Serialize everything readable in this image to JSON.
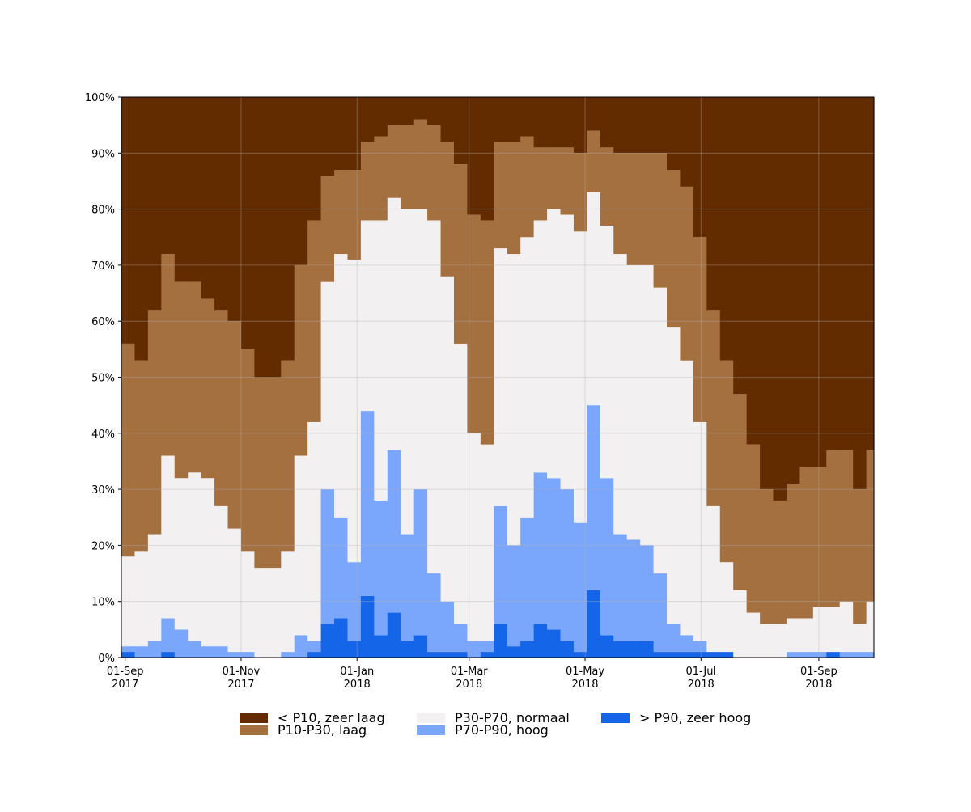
{
  "chart_data": {
    "type": "stacked_area",
    "x": [
      "2017-08-30",
      "2017-09-06",
      "2017-09-13",
      "2017-09-20",
      "2017-09-27",
      "2017-10-04",
      "2017-10-11",
      "2017-10-18",
      "2017-10-25",
      "2017-11-01",
      "2017-11-08",
      "2017-11-15",
      "2017-11-22",
      "2017-11-29",
      "2017-12-06",
      "2017-12-13",
      "2017-12-20",
      "2017-12-27",
      "2018-01-03",
      "2018-01-10",
      "2018-01-17",
      "2018-01-24",
      "2018-01-31",
      "2018-02-07",
      "2018-02-14",
      "2018-02-21",
      "2018-02-28",
      "2018-03-07",
      "2018-03-14",
      "2018-03-21",
      "2018-03-28",
      "2018-04-04",
      "2018-04-11",
      "2018-04-18",
      "2018-04-25",
      "2018-05-02",
      "2018-05-09",
      "2018-05-16",
      "2018-05-23",
      "2018-05-30",
      "2018-06-06",
      "2018-06-13",
      "2018-06-20",
      "2018-06-27",
      "2018-07-04",
      "2018-07-11",
      "2018-07-18",
      "2018-07-25",
      "2018-08-01",
      "2018-08-08",
      "2018-08-15",
      "2018-08-22",
      "2018-08-29",
      "2018-09-05",
      "2018-09-12",
      "2018-09-19",
      "2018-09-26"
    ],
    "series": [
      {
        "name": "< P10, zeer laag",
        "color": "#632c00",
        "values": [
          44,
          47,
          38,
          28,
          33,
          33,
          36,
          38,
          40,
          45,
          50,
          50,
          47,
          30,
          22,
          14,
          13,
          13,
          8,
          7,
          5,
          5,
          4,
          5,
          8,
          12,
          21,
          22,
          8,
          8,
          7,
          9,
          9,
          9,
          10,
          6,
          9,
          10,
          10,
          10,
          10,
          13,
          16,
          25,
          38,
          47,
          53,
          62,
          70,
          72,
          69,
          66,
          66,
          63,
          63,
          70,
          63
        ]
      },
      {
        "name": "P10-P30, laag",
        "color": "#a5703f",
        "values": [
          38,
          34,
          40,
          36,
          35,
          34,
          32,
          35,
          37,
          36,
          34,
          34,
          34,
          34,
          36,
          19,
          15,
          16,
          14,
          15,
          13,
          15,
          16,
          17,
          24,
          32,
          39,
          40,
          19,
          20,
          18,
          13,
          11,
          12,
          14,
          11,
          14,
          18,
          20,
          20,
          24,
          28,
          31,
          33,
          35,
          36,
          35,
          30,
          24,
          22,
          24,
          27,
          25,
          28,
          27,
          24,
          27
        ]
      },
      {
        "name": "P30-P70, normaal",
        "color": "#f2f0f0",
        "values": [
          16,
          17,
          19,
          29,
          27,
          30,
          30,
          25,
          22,
          18,
          16,
          16,
          18,
          32,
          39,
          37,
          47,
          54,
          34,
          50,
          45,
          58,
          50,
          63,
          58,
          50,
          37,
          35,
          46,
          52,
          50,
          45,
          48,
          49,
          52,
          38,
          45,
          50,
          49,
          50,
          51,
          53,
          49,
          39,
          26,
          16,
          12,
          8,
          6,
          6,
          6,
          6,
          8,
          8,
          9,
          5,
          9
        ]
      },
      {
        "name": "P70-P90, hoog",
        "color": "#7aa7fb",
        "values": [
          1,
          2,
          3,
          6,
          5,
          3,
          2,
          2,
          1,
          1,
          0,
          0,
          1,
          4,
          2,
          24,
          18,
          14,
          33,
          24,
          29,
          19,
          26,
          14,
          9,
          5,
          3,
          2,
          21,
          18,
          22,
          27,
          27,
          27,
          23,
          33,
          28,
          19,
          18,
          17,
          14,
          5,
          3,
          2,
          0,
          0,
          0,
          0,
          0,
          0,
          1,
          1,
          1,
          0,
          1,
          1,
          1
        ]
      },
      {
        "name": "> P90, zeer hoog",
        "color": "#1565e8",
        "values": [
          1,
          0,
          0,
          1,
          0,
          0,
          0,
          0,
          0,
          0,
          0,
          0,
          0,
          0,
          1,
          6,
          7,
          3,
          11,
          4,
          8,
          3,
          4,
          1,
          1,
          1,
          0,
          1,
          6,
          2,
          3,
          6,
          5,
          3,
          1,
          12,
          4,
          3,
          3,
          3,
          1,
          1,
          1,
          1,
          1,
          1,
          0,
          0,
          0,
          0,
          0,
          0,
          0,
          1,
          0,
          0,
          0
        ]
      }
    ],
    "xlim": [
      "2017-08-30",
      "2018-09-30"
    ],
    "xticks": [
      {
        "value": "2017-09-01",
        "label": "01-Sep\n2017"
      },
      {
        "value": "2017-11-01",
        "label": "01-Nov\n2017"
      },
      {
        "value": "2018-01-01",
        "label": "01-Jan\n2018"
      },
      {
        "value": "2018-03-01",
        "label": "01-Mar\n2018"
      },
      {
        "value": "2018-05-01",
        "label": "01-May\n2018"
      },
      {
        "value": "2018-07-01",
        "label": "01-Jul\n2018"
      },
      {
        "value": "2018-09-01",
        "label": "01-Sep\n2018"
      }
    ],
    "ylim": [
      0,
      100
    ],
    "yticks": [
      {
        "value": 0,
        "label": "0%"
      },
      {
        "value": 10,
        "label": "10%"
      },
      {
        "value": 20,
        "label": "20%"
      },
      {
        "value": 30,
        "label": "30%"
      },
      {
        "value": 40,
        "label": "40%"
      },
      {
        "value": 50,
        "label": "50%"
      },
      {
        "value": 60,
        "label": "60%"
      },
      {
        "value": 70,
        "label": "70%"
      },
      {
        "value": 80,
        "label": "80%"
      },
      {
        "value": 90,
        "label": "90%"
      },
      {
        "value": 100,
        "label": "100%"
      }
    ],
    "grid": true,
    "legend": "bottom"
  }
}
